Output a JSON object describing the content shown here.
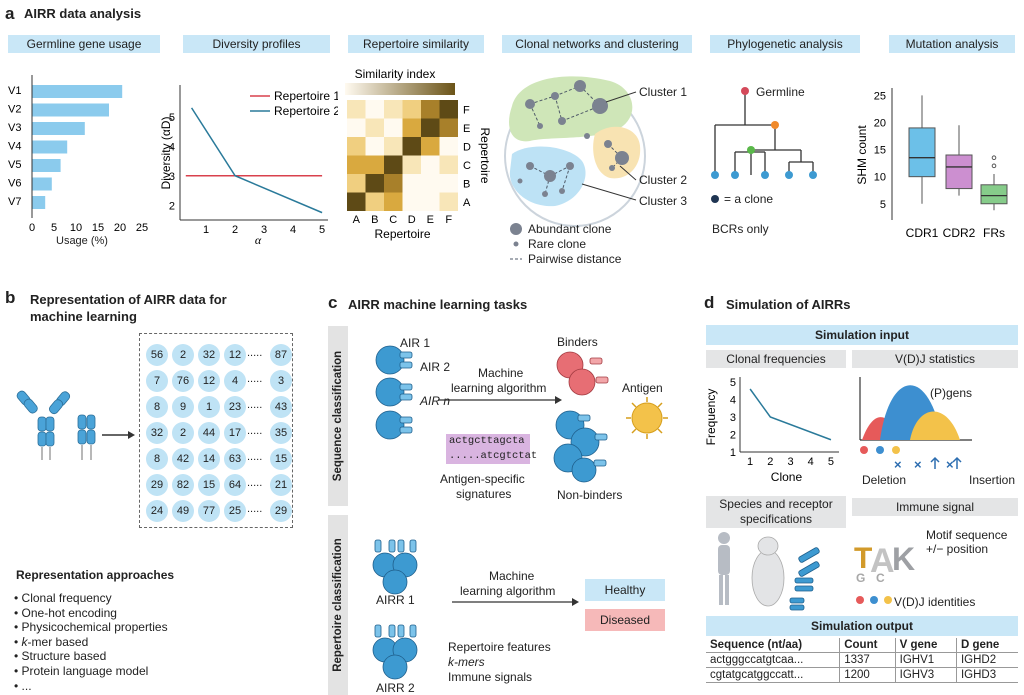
{
  "panel_a": {
    "letter": "a",
    "title": "AIRR data analysis",
    "headers": [
      "Germline gene usage",
      "Diversity profiles",
      "Repertoire similarity",
      "Clonal networks and clustering",
      "Phylogenetic analysis",
      "Mutation analysis"
    ],
    "germline": {
      "genes": [
        "V1",
        "V2",
        "V3",
        "V4",
        "V5",
        "V6",
        "V7"
      ],
      "values": [
        20.5,
        17.5,
        12,
        8,
        6.5,
        4.5,
        3
      ],
      "ticks": [
        "0",
        "5",
        "10",
        "15",
        "20",
        "25"
      ],
      "xlabel": "Usage (%)"
    },
    "diversity": {
      "ylabel": "Diversity (αD)",
      "xlabel": "α",
      "yticks": [
        "2",
        "3",
        "4",
        "5"
      ],
      "xticks": [
        "1",
        "2",
        "3",
        "4",
        "5"
      ],
      "legend": [
        "Repertoire 1",
        "Repertoire 2"
      ],
      "rep1": [
        [
          0.3,
          3.0
        ],
        [
          5.0,
          3.0
        ]
      ],
      "rep2": [
        [
          0.5,
          5.3
        ],
        [
          2.0,
          3.0
        ],
        [
          5.0,
          1.75
        ]
      ]
    },
    "similarity": {
      "index_label": "Similarity index",
      "xticks": [
        "A",
        "B",
        "C",
        "D",
        "E",
        "F"
      ],
      "yticks": [
        "F",
        "E",
        "D",
        "C",
        "B",
        "A"
      ],
      "xlabel": "Repertoire",
      "ylabel": "Repertoire"
    },
    "clonal": {
      "cluster1": "Cluster 1",
      "cluster2": "Cluster 2",
      "cluster3": "Cluster 3",
      "legend_abundant": "Abundant clone",
      "legend_rare": "Rare clone",
      "legend_pairwise": "Pairwise distance"
    },
    "phylo": {
      "germline": "Germline",
      "clone_legend": "= a clone",
      "note": "BCRs only"
    },
    "mutation": {
      "ylabel": "SHM count",
      "yticks": [
        "5",
        "10",
        "15",
        "20",
        "25"
      ],
      "categories": [
        "CDR1",
        "CDR2",
        "FRs"
      ],
      "colors": [
        "#6cc0e8",
        "#cc8fd0",
        "#86cc8a"
      ]
    }
  },
  "panel_b": {
    "letter": "b",
    "title_line1": "Representation of AIRR data for",
    "title_line2": "machine learning",
    "matrix": [
      [
        "56",
        "2",
        "32",
        "12",
        ".....",
        "87"
      ],
      [
        "7",
        "76",
        "12",
        "4",
        ".....",
        "3"
      ],
      [
        "8",
        "9",
        "1",
        "23",
        ".....",
        "43"
      ],
      [
        "32",
        "2",
        "44",
        "17",
        ".....",
        "35"
      ],
      [
        "8",
        "42",
        "14",
        "63",
        ".....",
        "15"
      ],
      [
        "29",
        "82",
        "15",
        "64",
        ".....",
        "21"
      ],
      [
        "24",
        "49",
        "77",
        "25",
        ".....",
        "29"
      ]
    ],
    "approaches_title": "Representation approaches",
    "approaches": [
      "Clonal frequency",
      "One-hot encoding",
      "Physicochemical properties",
      "k-mer based",
      "Structure based",
      "Protein language model",
      "..."
    ]
  },
  "panel_c": {
    "letter": "c",
    "title": "AIRR machine learning tasks",
    "seq_label": "Sequence classification",
    "rep_label": "Repertoire classification",
    "air1": "AIR 1",
    "air2": "AIR 2",
    "airn": "AIR n",
    "ml_line1": "Machine",
    "ml_line2": "learning algorithm",
    "binders": "Binders",
    "antigen": "Antigen",
    "nonbinders": "Non-binders",
    "sig_seq1": "actgcttagcta",
    "sig_seq2": ".....atcgtctat",
    "sig_label1": "Antigen-specific",
    "sig_label2": "signatures",
    "airr1": "AIRR 1",
    "airr2": "AIRR 2",
    "healthy": "Healthy",
    "diseased": "Diseased",
    "features": [
      "Repertoire features",
      "k-mers",
      "Immune signals"
    ]
  },
  "panel_d": {
    "letter": "d",
    "title": "Simulation of AIRRs",
    "input_head": "Simulation input",
    "clonal_freq": "Clonal frequencies",
    "vdj_stats": "V(D)J statistics",
    "freq_ylabel": "Frequency",
    "freq_xlabel": "Clone",
    "freq_xticks": [
      "1",
      "2",
      "3",
      "4",
      "5"
    ],
    "freq_yticks": [
      "1",
      "2",
      "3",
      "4",
      "5"
    ],
    "freq_points": [
      [
        1,
        4.6
      ],
      [
        2,
        3.0
      ],
      [
        5,
        1.7
      ]
    ],
    "pgens": "(P)gens",
    "deletion": "Deletion",
    "insertion": "Insertion",
    "species_line1": "Species and receptor",
    "species_line2": "specifications",
    "immune_signal": "Immune signal",
    "motif_line1": "Motif sequence",
    "motif_line2": "+/− position",
    "vdj_ident": "V(D)J identities",
    "output_head": "Simulation output",
    "table_headers": [
      "Sequence (nt/aa)",
      "Count",
      "V gene",
      "D gene"
    ],
    "table_rows": [
      [
        "actgggccatgtcaa...",
        "1337",
        "IGHV1",
        "IGHD2"
      ],
      [
        "cgtatgcatggccatt...",
        "1200",
        "IGHV3",
        "IGHD3"
      ]
    ]
  }
}
